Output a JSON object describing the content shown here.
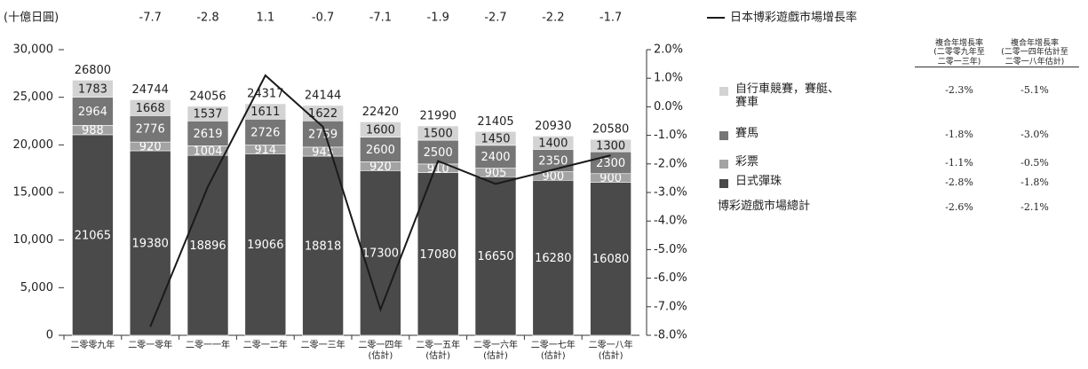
{
  "chart_data": {
    "type": "bar",
    "y_axis_label": "(十億日圓)",
    "categories": [
      "二零零九年",
      "二零一零年",
      "二零一一年",
      "二零一二年",
      "二零一三年",
      "二零一四年\n(估計)",
      "二零一五年\n(估計)",
      "二零一六年\n(估計)",
      "二零一七年\n(估計)",
      "二零一八年\n(估計)"
    ],
    "series": [
      {
        "name": "日式彈珠",
        "color": "#4a4a4a",
        "values": [
          21065,
          19380,
          18896,
          19066,
          18818,
          17300,
          17080,
          16650,
          16280,
          16080
        ]
      },
      {
        "name": "彩票",
        "color": "#a3a3a3",
        "values": [
          988,
          920,
          1004,
          914,
          945,
          920,
          910,
          905,
          900,
          900
        ]
      },
      {
        "name": "賽馬",
        "color": "#767676",
        "values": [
          2964,
          2776,
          2619,
          2726,
          2759,
          2600,
          2500,
          2400,
          2350,
          2300
        ]
      },
      {
        "name": "自行車競賽，賽艇、\n賽車",
        "color": "#d3d3d3",
        "values": [
          1783,
          1668,
          1537,
          1611,
          1622,
          1600,
          1500,
          1450,
          1400,
          1300
        ]
      },
      {
        "name": "日本博彩遊戲市場增長率",
        "color": "#1a1a1a",
        "axis": "y2",
        "type": "line",
        "values": [
          null,
          -7.7,
          -2.8,
          1.1,
          -0.7,
          -7.1,
          -1.9,
          -2.7,
          -2.2,
          -1.7
        ]
      }
    ],
    "totals": [
      26800,
      24744,
      24056,
      24317,
      24144,
      22420,
      21990,
      21405,
      20930,
      20580
    ],
    "ylim": [
      0,
      30000
    ],
    "yticks": [
      0,
      {
        "value": 5000,
        "label": "5,000"
      },
      {
        "value": 10000,
        "label": "10,000"
      },
      {
        "value": 15000,
        "label": "15,000"
      },
      {
        "value": 20000,
        "label": "20,000"
      },
      {
        "value": 25000,
        "label": "25,000"
      },
      {
        "value": 30000,
        "label": "30,000"
      }
    ],
    "y2lim": [
      -8,
      2
    ],
    "y2ticks": [
      {
        "value": -8,
        "label": "-8.0%"
      },
      {
        "value": -7,
        "label": "-7.0%"
      },
      {
        "value": -6,
        "label": "-6.0%"
      },
      {
        "value": -5,
        "label": "-5.0%"
      },
      {
        "value": -4,
        "label": "-4.0%"
      },
      {
        "value": -3,
        "label": "-3.0%"
      },
      {
        "value": -2,
        "label": "-2.0%"
      },
      {
        "value": -1,
        "label": "-1.0%"
      },
      {
        "value": 0,
        "label": "0.0%"
      },
      {
        "value": 1,
        "label": "1.0%"
      },
      {
        "value": 2,
        "label": "2.0%"
      }
    ],
    "table": {
      "headers": [
        "複合年增長率\n(二零零九年至\n二零一三年)",
        "複合年增長率\n(二零一四年估計至\n二零一八年估計)"
      ],
      "rows": [
        [
          "-2.3%",
          "-5.1%"
        ],
        [
          "-1.8%",
          "-3.0%"
        ],
        [
          "-1.1%",
          "-0.5%"
        ],
        [
          "-2.8%",
          "-1.8%"
        ],
        [
          "-2.6%",
          "-2.1%"
        ]
      ],
      "total_label": "博彩遊戲市場總計"
    }
  }
}
